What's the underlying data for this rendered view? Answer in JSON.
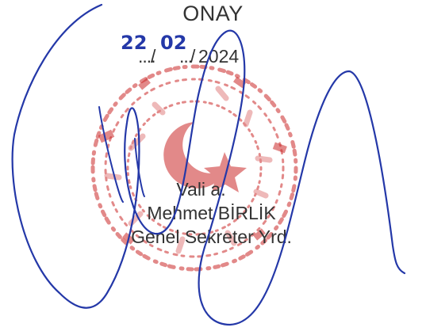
{
  "approval": {
    "heading": "ONAY",
    "date": {
      "day": "22",
      "day_placeholder": "....",
      "separator": "/",
      "month": "02",
      "month_placeholder": "...",
      "year": "2024"
    },
    "signer": {
      "role": "Vali a.",
      "name": "Mehmet BİRLİK",
      "title": "Genel Sekreter Yrd."
    }
  },
  "colors": {
    "stamp": "#cc2a2a",
    "ink": "#2438a8",
    "print": "#333333"
  }
}
